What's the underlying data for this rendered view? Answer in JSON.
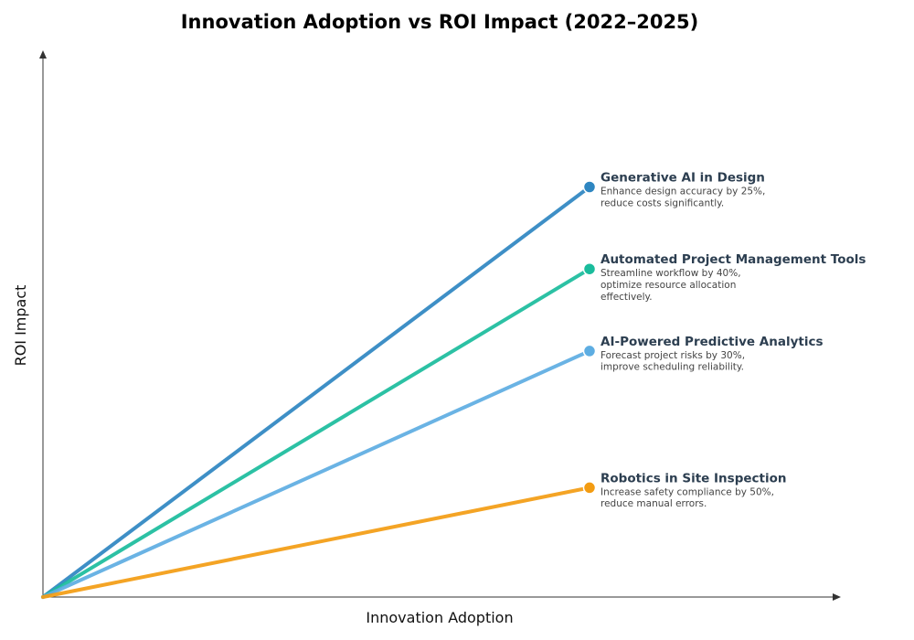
{
  "chart_data": {
    "type": "line",
    "title": "Innovation Adoption vs ROI Impact (2022–2025)",
    "xlabel": "Innovation Adoption",
    "ylabel": "ROI Impact",
    "grid": false,
    "xlim": [
      0,
      10
    ],
    "ylim": [
      0,
      10
    ],
    "series": [
      {
        "name": "Generative AI in Design",
        "color": "#2e86c1",
        "x": [
          0,
          6.85
        ],
        "y": [
          0,
          7.5
        ],
        "description": [
          "Enhance design accuracy by 25%,",
          "reduce costs significantly."
        ]
      },
      {
        "name": "Automated Project Management Tools",
        "color": "#1abc9c",
        "x": [
          0,
          6.85
        ],
        "y": [
          0,
          6.0
        ],
        "description": [
          "Streamline workflow by 40%,",
          "optimize resource allocation",
          "effectively."
        ]
      },
      {
        "name": "AI-Powered Predictive Analytics",
        "color": "#5dade2",
        "x": [
          0,
          6.85
        ],
        "y": [
          0,
          4.5
        ],
        "description": [
          "Forecast project risks by 30%,",
          "improve scheduling reliability."
        ]
      },
      {
        "name": "Robotics in Site Inspection",
        "color": "#f39c12",
        "x": [
          0,
          6.85
        ],
        "y": [
          0,
          2.0
        ],
        "description": [
          "Increase safety compliance by 50%,",
          "reduce manual errors."
        ]
      }
    ]
  }
}
